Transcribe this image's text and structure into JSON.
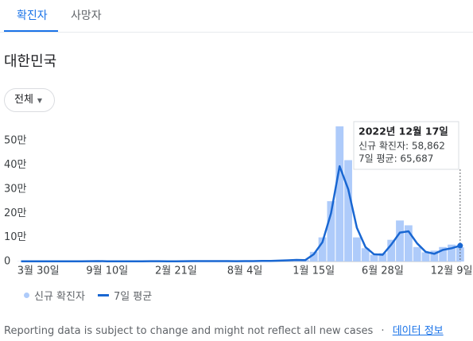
{
  "tabs": [
    "확진자",
    "사망자"
  ],
  "region": "대한민국",
  "filter": "전체",
  "chart_data": {
    "type": "bar-line",
    "categories": [
      null,
      null,
      "3월 30일",
      null,
      null,
      null,
      null,
      null,
      null,
      null,
      "9월 10일",
      null,
      null,
      null,
      null,
      null,
      null,
      null,
      "2월 21일",
      null,
      null,
      null,
      null,
      null,
      null,
      null,
      "8월 4일",
      null,
      null,
      null,
      null,
      null,
      null,
      null,
      "1월 15일",
      null,
      null,
      null,
      null,
      null,
      null,
      null,
      "6월 28일",
      null,
      null,
      null,
      null,
      null,
      null,
      null,
      "12월 9일",
      null
    ],
    "series": [
      {
        "name": "신규 확진자",
        "color": "#aecbfa",
        "values": [
          800,
          900,
          700,
          600,
          700,
          800,
          900,
          1000,
          1200,
          1500,
          1100,
          900,
          800,
          900,
          1000,
          1300,
          1200,
          1000,
          1100,
          1300,
          1500,
          1600,
          1800,
          1700,
          1500,
          1400,
          1600,
          1800,
          2200,
          2500,
          3800,
          5500,
          7000,
          6000,
          40000,
          100000,
          250000,
          560000,
          420000,
          100000,
          55000,
          28000,
          35000,
          90000,
          170000,
          150000,
          60000,
          38000,
          45000,
          60000,
          70000,
          58862
        ]
      },
      {
        "name": "7일 평균",
        "color": "#1967d2",
        "values": [
          800,
          900,
          700,
          600,
          700,
          800,
          900,
          1000,
          1200,
          1500,
          1100,
          900,
          800,
          900,
          1000,
          1300,
          1200,
          1000,
          1100,
          1300,
          1500,
          1600,
          1800,
          1700,
          1500,
          1400,
          1600,
          1800,
          2200,
          2500,
          3500,
          5000,
          6500,
          5500,
          30000,
          80000,
          200000,
          395000,
          300000,
          140000,
          60000,
          30000,
          28000,
          70000,
          120000,
          125000,
          75000,
          40000,
          32000,
          48000,
          55000,
          65687
        ]
      }
    ],
    "ylim": [
      0,
      550000
    ],
    "yticks": [
      0,
      {
        "value": 100000,
        "label": "10만"
      },
      {
        "value": 200000,
        "label": "20만"
      },
      {
        "value": 300000,
        "label": "30만"
      },
      {
        "value": 400000,
        "label": "40만"
      },
      {
        "value": 500000,
        "label": "50만"
      }
    ],
    "grid": false,
    "tooltip": {
      "title": "2022년 12월 17일",
      "lines": [
        "신규 확진자: 58,862",
        "7일 평균: 65,687"
      ]
    }
  },
  "footer": {
    "note": "Reporting data is subject to change and might not reflect all new cases",
    "separator": "·",
    "link": "데이터 정보"
  }
}
